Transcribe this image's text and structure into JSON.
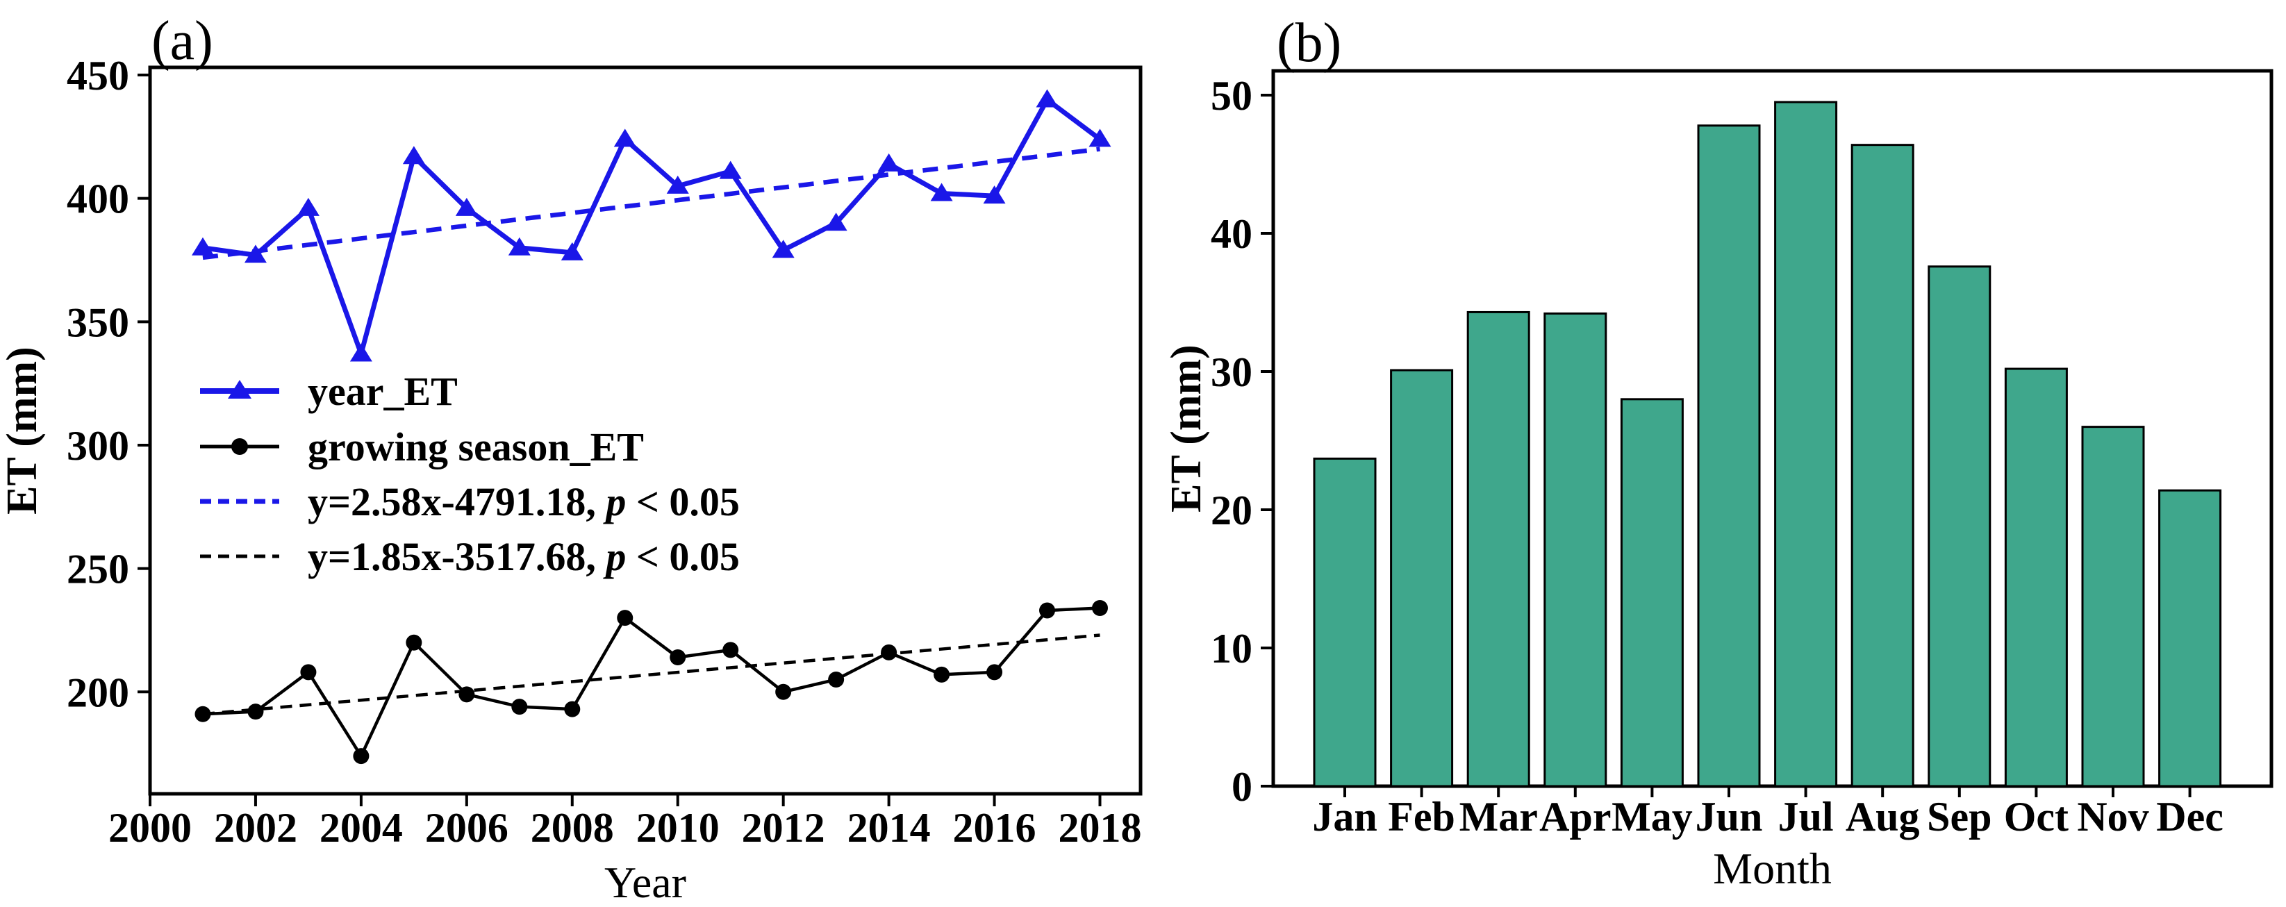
{
  "figure": {
    "description": "Two-panel evapotranspiration figure",
    "background": "#ffffff",
    "panel_labels": [
      "(a)",
      "(b)"
    ]
  },
  "chart_data": [
    {
      "type": "line",
      "panel_label": "(a)",
      "xlabel": "Year",
      "ylabel": "ET (mm)",
      "grid": false,
      "legend_position": "center-left",
      "xlim": [
        2000,
        2018.77
      ],
      "ylim": [
        158.7,
        453.1
      ],
      "x_ticks": [
        2000,
        2002,
        2004,
        2006,
        2008,
        2010,
        2012,
        2014,
        2016,
        2018
      ],
      "y_ticks": [
        200,
        250,
        300,
        350,
        400,
        450
      ],
      "x": [
        2001,
        2002,
        2003,
        2004,
        2005,
        2006,
        2007,
        2008,
        2009,
        2010,
        2011,
        2012,
        2013,
        2014,
        2015,
        2016,
        2017,
        2018
      ],
      "series": [
        {
          "name": "year_ET",
          "color": "#1a17e8",
          "style": "solid",
          "marker": "triangle",
          "values": [
            380,
            377,
            396,
            337,
            417,
            396,
            380,
            378,
            424,
            405,
            411,
            379,
            390,
            414,
            402,
            401,
            440,
            424
          ]
        },
        {
          "name": "growing season_ET",
          "color": "#000000",
          "style": "solid",
          "marker": "circle",
          "values": [
            191,
            192,
            208,
            174,
            220,
            199,
            194,
            193,
            230,
            214,
            217,
            200,
            205,
            216,
            207,
            208,
            233,
            234
          ]
        }
      ],
      "trendlines": [
        {
          "label_pre": "y=2.58x-4791.18, ",
          "label_italic": "p",
          "label_post": " < 0.05",
          "color": "#1a17e8",
          "style": "dashed",
          "x1": 2001,
          "y1": 376,
          "x2": 2018,
          "y2": 420
        },
        {
          "label_pre": "y=1.85x-3517.68, ",
          "label_italic": "p",
          "label_post": " < 0.05",
          "color": "#000000",
          "style": "dashed",
          "x1": 2001,
          "y1": 191,
          "x2": 2018,
          "y2": 223
        }
      ]
    },
    {
      "type": "bar",
      "panel_label": "(b)",
      "xlabel": "Month",
      "ylabel": "ET (mm)",
      "grid": false,
      "ylim": [
        0,
        51.76
      ],
      "y_ticks": [
        0,
        10,
        20,
        30,
        40,
        50
      ],
      "categories": [
        "Jan",
        "Feb",
        "Mar",
        "Apr",
        "May",
        "Jun",
        "Jul",
        "Aug",
        "Sep",
        "Oct",
        "Nov",
        "Dec"
      ],
      "values": [
        23.7,
        30.1,
        34.3,
        34.2,
        28.0,
        47.8,
        49.5,
        46.4,
        37.6,
        30.2,
        26.0,
        21.4
      ],
      "bar_color": "#3fa78c",
      "bar_edge_color": "#000000"
    }
  ]
}
